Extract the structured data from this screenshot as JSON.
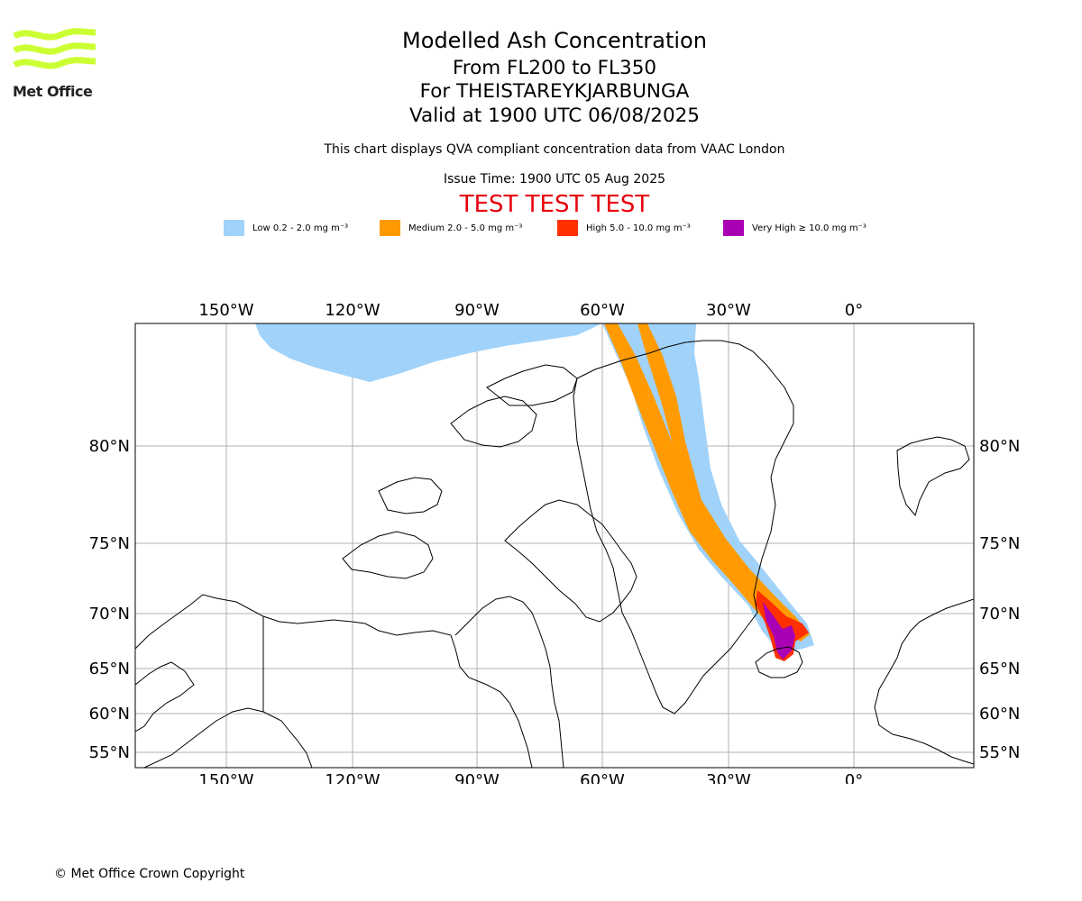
{
  "brand": {
    "logo_text": "Met Office",
    "logo_color": "#ccff33"
  },
  "header": {
    "title": "Modelled Ash Concentration",
    "levels": "From FL200 to FL350",
    "location": "For THEISTAREYKJARBUNGA",
    "valid": "Valid at 1900 UTC 06/08/2025",
    "subtitle": "This chart displays QVA compliant concentration data from VAAC London",
    "issue_time": "Issue Time: 1900 UTC 05 Aug 2025",
    "test_banner": "TEST TEST TEST",
    "test_color": "#e8000b"
  },
  "legend": [
    {
      "label": "Low 0.2 - 2.0 mg m⁻³",
      "color": "#a0d2fa"
    },
    {
      "label": "Medium 2.0 - 5.0 mg m⁻³",
      "color": "#ff9b00"
    },
    {
      "label": "High 5.0 - 10.0 mg m⁻³",
      "color": "#ff2f00"
    },
    {
      "label": "Very High  ≥  10.0 mg m⁻³",
      "color": "#aa00b4"
    }
  ],
  "map": {
    "lon_labels": [
      "150°W",
      "120°W",
      "90°W",
      "60°W",
      "30°W",
      "0°"
    ],
    "lat_labels": [
      "80°N",
      "75°N",
      "70°N",
      "65°N",
      "60°N",
      "55°N"
    ],
    "grid_color": "#b0b0b0"
  },
  "footer": {
    "copyright": "© Met Office Crown Copyright"
  }
}
